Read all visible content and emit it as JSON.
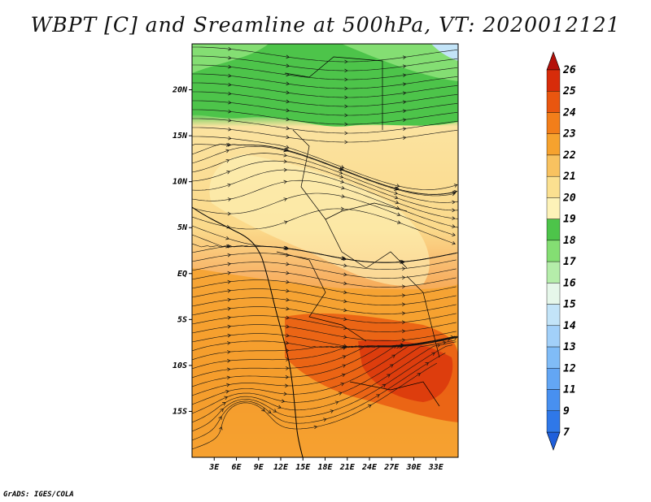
{
  "title": "WBPT [C] and Sreamline at 500hPa, VT: 2020012121",
  "credit": "GrADS: IGES/COLA",
  "map": {
    "lon_range": [
      0,
      36
    ],
    "lat_range": [
      -20,
      25
    ],
    "lon_ticks": [
      "3E",
      "6E",
      "9E",
      "12E",
      "15E",
      "18E",
      "21E",
      "24E",
      "27E",
      "30E",
      "33E"
    ],
    "lat_ticks": [
      "20N",
      "15N",
      "10N",
      "5N",
      "EQ",
      "5S",
      "10S",
      "15S"
    ]
  },
  "colorbar": {
    "levels": [
      "7",
      "9",
      "11",
      "12",
      "13",
      "14",
      "15",
      "16",
      "17",
      "18",
      "19",
      "20",
      "21",
      "22",
      "23",
      "24",
      "25",
      "26"
    ],
    "colors": [
      "#1f5fdb",
      "#2f78e8",
      "#4890f0",
      "#63a6f4",
      "#80bcf7",
      "#a2d0f9",
      "#c3e4f8",
      "#e6f7ea",
      "#b5edaa",
      "#84de73",
      "#4dc44a",
      "#fdf2b8",
      "#fbe090",
      "#f8c260",
      "#f6a22e",
      "#f27e1a",
      "#e9560f",
      "#d72c0a",
      "#b4100a"
    ]
  }
}
